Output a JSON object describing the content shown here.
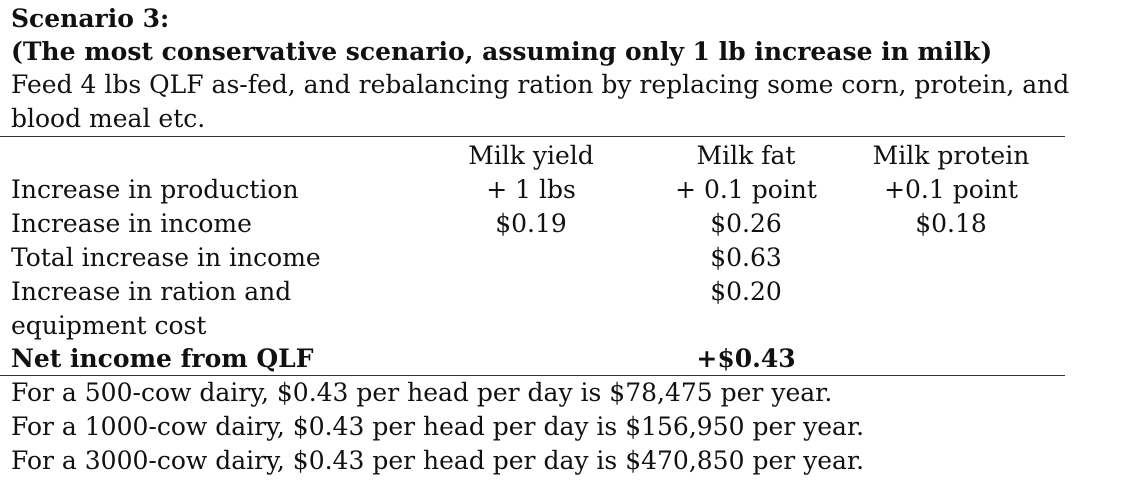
{
  "heading": {
    "title": "Scenario 3:",
    "subtitle": "(The most conservative scenario, assuming only 1 lb increase in milk)",
    "description_line1": "Feed 4 lbs QLF as-fed, and rebalancing ration by replacing some corn, protein, and",
    "description_line2": "blood meal etc."
  },
  "table": {
    "headers": [
      "",
      "Milk yield",
      "Milk fat",
      "Milk protein"
    ],
    "rows": [
      {
        "label": "Increase in production",
        "yield": "+ 1 lbs",
        "fat": "+ 0.1 point",
        "protein": "+0.1 point"
      },
      {
        "label": "Increase in income",
        "yield": "$0.19",
        "fat": "$0.26",
        "protein": "$0.18"
      },
      {
        "label": "Total increase in income",
        "yield": "",
        "fat": "$0.63",
        "protein": ""
      },
      {
        "label": "Increase in ration and",
        "yield": "",
        "fat": "$0.20",
        "protein": ""
      },
      {
        "label": "equipment cost",
        "yield": "",
        "fat": "",
        "protein": ""
      },
      {
        "label": "Net income from QLF",
        "yield": "",
        "fat": "+$0.43",
        "protein": ""
      }
    ]
  },
  "footer": {
    "line1": "For a 500-cow dairy, $0.43 per head per day is $78,475 per year.",
    "line2": "For a 1000-cow dairy, $0.43 per head per day is $156,950 per year.",
    "line3": "For a 3000-cow dairy, $0.43 per head per day is $470,850 per year."
  }
}
